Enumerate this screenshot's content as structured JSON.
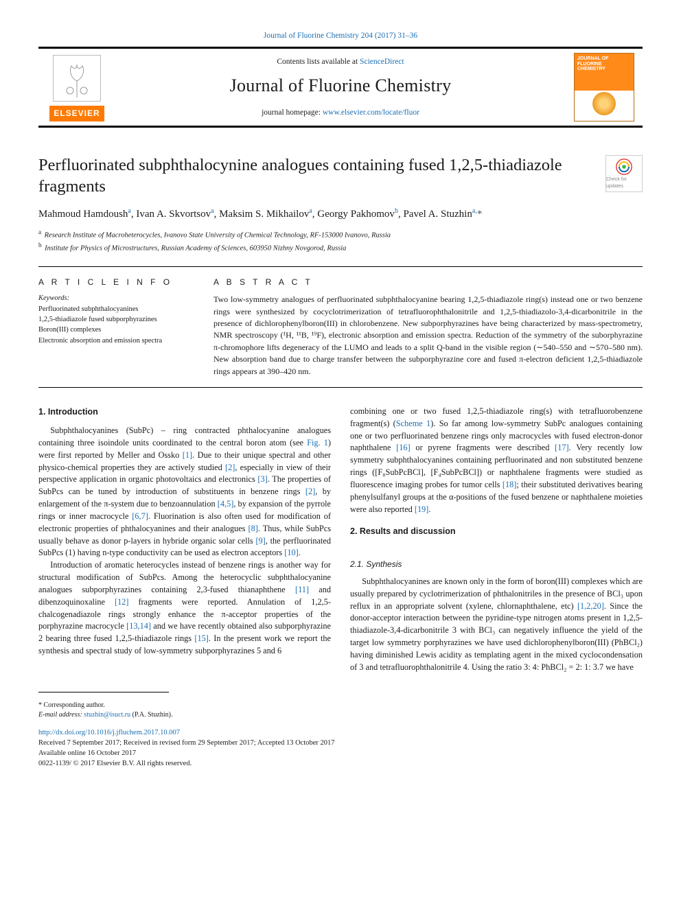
{
  "top_citation": "Journal of Fluorine Chemistry 204 (2017) 31–36",
  "masthead": {
    "contents_prefix": "Contents lists available at ",
    "contents_link": "ScienceDirect",
    "journal_title": "Journal of Fluorine Chemistry",
    "homepage_prefix": "journal homepage: ",
    "homepage_url": "www.elsevier.com/locate/fluor",
    "elsevier_label": "ELSEVIER",
    "cover_title": "JOURNAL OF\nFLUORINE\nCHEMISTRY"
  },
  "article": {
    "title": "Perfluorinated subphthalocynine analogues containing fused 1,2,5-thiadiazole fragments",
    "authors_html": "Mahmoud Hamdoush<sup>a</sup>, Ivan A. Skvortsov<sup>a</sup>, Maksim S. Mikhailov<sup>a</sup>, Georgy Pakhomov<sup>b</sup>, Pavel A. Stuzhin<sup>a,</sup><span class='ast'>*</span>",
    "affiliations": [
      {
        "key": "a",
        "text": "Research Institute of Macroheterocycles, Ivanovo State University of Chemical Technology, RF-153000 Ivanovo, Russia"
      },
      {
        "key": "b",
        "text": "Institute for Physics of Microstructures, Russian Academy of Sciences, 603950 Nizhny Novgorod, Russia"
      }
    ],
    "article_info_heading": "A R T I C L E  I N F O",
    "keywords_label": "Keywords:",
    "keywords": [
      "Perfluorinated subphthalocyanines",
      "1,2,5-thiadiazole fused subporphyrazines",
      "Boron(III) complexes",
      "Electronic absorption and emission spectra"
    ],
    "abstract_heading": "A B S T R A C T",
    "abstract": "Two low-symmetry analogues of perfluorinated subphthalocyanine bearing 1,2,5-thiadiazole ring(s) instead one or two benzene rings were synthesized by cocyclotrimerization of tetrafluorophthalonitrile and 1,2,5-thiadiazolo-3,4-dicarbonitrile in the presence of dichlorophenylboron(III) in chlorobenzene. New subporphyrazines have being characterized by mass-spectrometry, NMR spectroscopy (¹H, ¹¹B, ¹⁹F), electronic absorption and emission spectra. Reduction of the symmetry of the suborphyrazine π-chromophore lifts degeneracy of the LUMO and leads to a split Q-band in the visible region (∼540–550 and ∼570–580 nm). New absorption band due to charge transfer between the subporphyrazine core and fused π-electron deficient 1,2,5-thiadiazole rings appears at 390–420 nm."
  },
  "sections": {
    "intro_heading": "1. Introduction",
    "intro_p1": "Subphthalocyanines (SubPc) – ring contracted phthalocyanine analogues containing three isoindole units coordinated to the central boron atom (see Fig. 1) were first reported by Meller and Ossko [1]. Due to their unique spectral and other physico-chemical properties they are actively studied [2], especially in view of their perspective application in organic photovoltaics and electronics [3]. The properties of SubPcs can be tuned by introduction of substituents in benzene rings [2], by enlargement of the π-system due to benzoannulation [4,5], by expansion of the pyrrole rings or inner macrocycle [6,7]. Fluorination is also often used for modification of electronic properties of phthalocyanines and their analogues [8]. Thus, while SubPcs usually behave as donor p-layers in hybride organic solar cells [9], the perfluorinated SubPcs (1) having n-type conductivity can be used as electron acceptors [10].",
    "intro_p2": "Introduction of aromatic heterocycles instead of benzene rings is another way for structural modification of SubPcs. Among the heterocyclic subphthalocyanine analogues subporphyrazines containing 2,3-fused thianaphthene [11] and dibenzoquinoxaline [12] fragments were reported. Annulation of 1,2,5-chalcogenadiazole rings strongly enhance the π-acceptor properties of the porphyrazine macrocycle [13,14] and we have recently obtained also subporphyrazine 2 bearing three fused 1,2,5-thiadiazole rings [15]. In the present work we report the synthesis and spectral study of low-symmetry subporphyrazines 5 and 6 ",
    "intro_p3_cont": "combining one or two fused 1,2,5-thiadiazole ring(s) with tetrafluorobenzene fragment(s) (Scheme 1). So far among low-symmetry SubPc analogues containing one or two perfluorinated benzene rings only macrocycles with fused electron-donor naphthalene [16] or pyrene fragments were described [17]. Very recently low symmetry subphthalocyanines containing perfluorinated and non substituted benzene rings ([F₈SubPcBCl], [F₄SubPcBCl]) or naphthalene fragments were studied as fluorescence imaging probes for tumor cells [18]; their substituted derivatives bearing phenylsulfanyl groups at the α-positions of the fused benzene or naphthalene moieties were also reported [19].",
    "results_heading": "2. Results and discussion",
    "synth_heading": "2.1. Synthesis",
    "synth_p1": "Subphthalocyanines are known only in the form of boron(III) complexes which are usually prepared by cyclotrimerization of phthalonitriles in the presence of BCl₃ upon reflux in an appropriate solvent (xylene, chlornaphthalene, etc) [1,2,20]. Since the donor-acceptor interaction between the pyridine-type nitrogen atoms present in 1,2,5-thiadiazole-3,4-dicarbonitrile 3 with BCl₃ can negatively influence the yield of the target low symmetry porphyrazines we have used dichlorophenylboron(III) (PhBCl₂) having diminished Lewis acidity as templating agent in the mixed cyclocondensation of 3 and tetrafluorophthalonitrile 4. Using the ratio 3: 4: PhBCl₂ = 2: 1: 3.7 we have"
  },
  "footer": {
    "corr_label": "* Corresponding author.",
    "email_label": "E-mail address:",
    "email": "stuzhin@isuct.ru",
    "email_name": "(P.A. Stuzhin).",
    "doi": "http://dx.doi.org/10.1016/j.jfluchem.2017.10.007",
    "received": "Received 7 September 2017; Received in revised form 29 September 2017; Accepted 13 October 2017",
    "available": "Available online 16 October 2017",
    "copyright": "0022-1139/ © 2017 Elsevier B.V. All rights reserved."
  },
  "crossmark_label": "Check for updates",
  "colors": {
    "link": "#1a6db3",
    "elsevier_orange": "#ff7a00"
  }
}
